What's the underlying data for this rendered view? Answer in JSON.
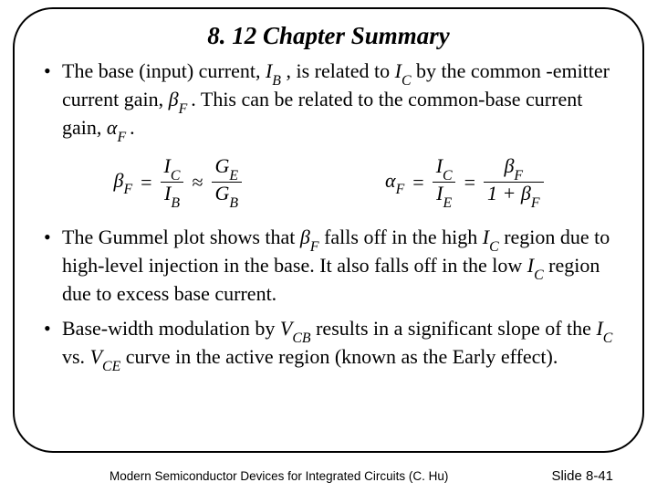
{
  "title": "8. 12  Chapter Summary",
  "bullets": {
    "b1_a": "The base (input) current, ",
    "b1_ib": "I",
    "b1_ib_sub": "B",
    "b1_b": " , is related to ",
    "b1_ic": "I",
    "b1_ic_sub": "C",
    "b1_c": " by the common -emitter current gain, ",
    "b1_beta": "β",
    "b1_beta_sub": "F ",
    "b1_d": ". This can be related to the common-base current gain, ",
    "b1_alpha": "α",
    "b1_alpha_sub": "F ",
    "b1_e": ".",
    "b2_a": "The Gummel plot shows that ",
    "b2_beta": "β",
    "b2_beta_sub": "F",
    "b2_b": " falls off in the high ",
    "b2_ic": "I",
    "b2_ic_sub": "C",
    "b2_c": " region due to high-level injection in the base. It also falls off in the low ",
    "b2_ic2": "I",
    "b2_ic2_sub": "C",
    "b2_d": " region due to excess base current.",
    "b3_a": "Base-width modulation by ",
    "b3_vcb": "V",
    "b3_vcb_sub": "CB",
    "b3_b": " results in a significant slope of the ",
    "b3_ic": "I",
    "b3_ic_sub": "C",
    "b3_c": " vs. ",
    "b3_vce": "V",
    "b3_vce_sub": "CE",
    "b3_d": " curve in the active region (known as the Early effect)."
  },
  "formulas": {
    "f1_lhs": "β",
    "f1_lhs_sub": "F",
    "f1_num1": "I",
    "f1_num1_sub": "C",
    "f1_den1": "I",
    "f1_den1_sub": "B",
    "f1_num2": "G",
    "f1_num2_sub": "E",
    "f1_den2": "G",
    "f1_den2_sub": "B",
    "f2_lhs": "α",
    "f2_lhs_sub": "F",
    "f2_num1": "I",
    "f2_num1_sub": "C",
    "f2_den1": "I",
    "f2_den1_sub": "E",
    "f2_num2": "β",
    "f2_num2_sub": "F",
    "f2_den2_a": "1 + ",
    "f2_den2_b": "β",
    "f2_den2_b_sub": "F"
  },
  "footer": {
    "book": "Modern Semiconductor Devices for Integrated Circuits (C. Hu)",
    "slide": "Slide 8-41"
  }
}
